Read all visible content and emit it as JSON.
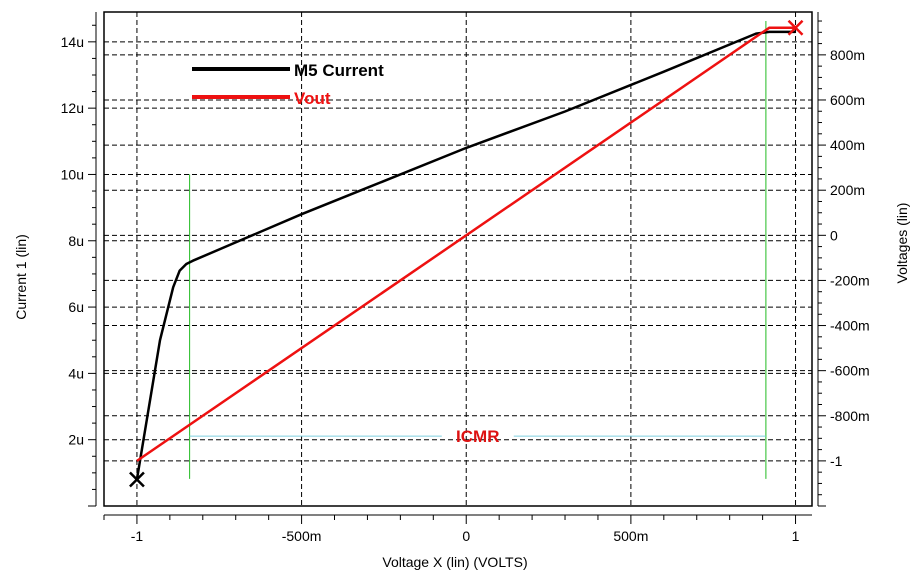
{
  "chart_data": {
    "type": "line",
    "title": "",
    "xlabel": "Voltage X (lin) (VOLTS)",
    "ylabel_left": "Current 1 (lin)",
    "ylabel_right": "Voltages (lin)",
    "xlim": [
      -1.1,
      1.05
    ],
    "ylim_left": [
      0.0,
      1.49e-05
    ],
    "ylim_right": [
      -1.2,
      0.99
    ],
    "grid": true,
    "legend_placement": "top-left",
    "x_ticks": [
      {
        "value": -1,
        "label": "-1"
      },
      {
        "value": -0.5,
        "label": "-500m"
      },
      {
        "value": 0,
        "label": "0"
      },
      {
        "value": 0.5,
        "label": "500m"
      },
      {
        "value": 1,
        "label": "1"
      }
    ],
    "y_left_ticks": [
      {
        "value": 2e-06,
        "label": "2u"
      },
      {
        "value": 4e-06,
        "label": "4u"
      },
      {
        "value": 6e-06,
        "label": "6u"
      },
      {
        "value": 8e-06,
        "label": "8u"
      },
      {
        "value": 1e-05,
        "label": "10u"
      },
      {
        "value": 1.2e-05,
        "label": "12u"
      },
      {
        "value": 1.4e-05,
        "label": "14u"
      }
    ],
    "y_right_ticks": [
      {
        "value": -1.0,
        "label": "-1"
      },
      {
        "value": -0.8,
        "label": "-800m"
      },
      {
        "value": -0.6,
        "label": "-600m"
      },
      {
        "value": -0.4,
        "label": "-400m"
      },
      {
        "value": -0.2,
        "label": "-200m"
      },
      {
        "value": 0.0,
        "label": "0"
      },
      {
        "value": 0.2,
        "label": "200m"
      },
      {
        "value": 0.4,
        "label": "400m"
      },
      {
        "value": 0.6,
        "label": "600m"
      },
      {
        "value": 0.8,
        "label": "800m"
      }
    ],
    "series": [
      {
        "name": "M5 Current",
        "color": "#000000",
        "axis": "left",
        "x": [
          -1.0,
          -0.97,
          -0.93,
          -0.89,
          -0.87,
          -0.85,
          -0.83,
          -0.7,
          -0.5,
          -0.3,
          0.0,
          0.3,
          0.6,
          0.88,
          0.92,
          1.0
        ],
        "y": [
          8e-07,
          2.6e-06,
          5e-06,
          6.6e-06,
          7.1e-06,
          7.3e-06,
          7.4e-06,
          7.95e-06,
          8.8e-06,
          9.6e-06,
          1.08e-05,
          1.19e-05,
          1.31e-05,
          1.425e-05,
          1.43e-05,
          1.43e-05
        ]
      },
      {
        "name": "Vout",
        "color": "#ee1111",
        "axis": "right",
        "x": [
          -1.0,
          0.92,
          1.0
        ],
        "y": [
          -1.0,
          0.92,
          0.92
        ]
      }
    ],
    "markers": [
      {
        "series": "M5 Current",
        "x": -1.0,
        "y": 8e-07,
        "color": "#000000"
      },
      {
        "series": "Vout",
        "x": 1.0,
        "y": 0.92,
        "color": "#ee1111"
      }
    ],
    "annotations": {
      "icmr_label": "ICMR",
      "icmr_x": [
        -0.84,
        0.91
      ],
      "icmr_line_value_right": -0.89,
      "icmr_bound_top_right": [
        0.27,
        0.95
      ],
      "icmr_bound_bottom_right": -1.08,
      "icmr_bound_color": "#22bb22",
      "icmr_line_color": "#7fcfdf",
      "icmr_label_color": "#dd1111"
    }
  }
}
